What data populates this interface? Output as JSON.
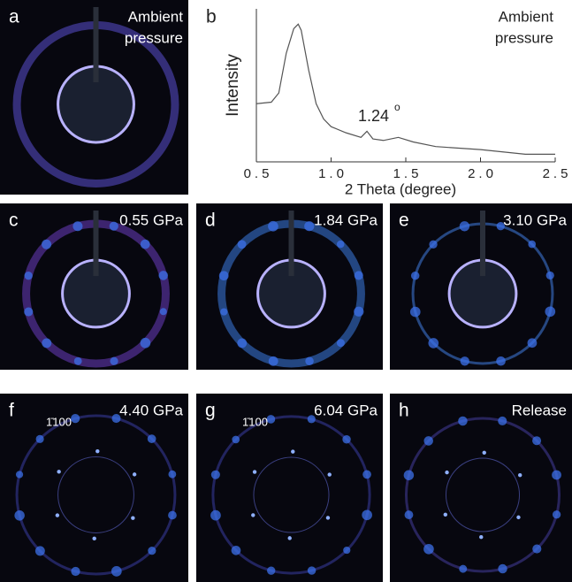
{
  "panels": [
    {
      "label": "a",
      "caption": [
        "Ambient",
        "pressure"
      ]
    },
    {
      "label": "c",
      "caption": [
        "0.55 GPa"
      ]
    },
    {
      "label": "d",
      "caption": [
        "1.84 GPa"
      ]
    },
    {
      "label": "e",
      "caption": [
        "3.10 GPa"
      ]
    },
    {
      "label": "f",
      "caption": [
        "4.40 GPa"
      ],
      "index": "1̄100"
    },
    {
      "label": "g",
      "caption": [
        "6.04 GPa"
      ],
      "index": "1̄100"
    },
    {
      "label": "h",
      "caption": [
        "Release"
      ]
    }
  ],
  "chart_data": {
    "type": "line",
    "label": "b",
    "caption": [
      "Ambient",
      "pressure"
    ],
    "xlabel": "2 Theta (degree)",
    "ylabel": "Intensity",
    "annotation": {
      "text": "1.24",
      "sup": "o"
    },
    "x": [
      0.5,
      0.6,
      0.65,
      0.7,
      0.75,
      0.78,
      0.8,
      0.85,
      0.9,
      0.95,
      1.0,
      1.1,
      1.2,
      1.24,
      1.28,
      1.35,
      1.45,
      1.55,
      1.7,
      2.0,
      2.3,
      2.5
    ],
    "series": [
      {
        "color": "#555555",
        "values": [
          38,
          39,
          45,
          71,
          87,
          90,
          86,
          60,
          38,
          28,
          23,
          19,
          16,
          20,
          15,
          14,
          16,
          13,
          10,
          8,
          5,
          5
        ]
      }
    ],
    "xlim": [
      0.5,
      2.5
    ],
    "xticks": [
      0.5,
      {
        "value": 1,
        "label": "1.0"
      },
      1.5,
      {
        "value": 2,
        "label": "2.0"
      },
      2.5
    ],
    "ylim": [
      0,
      100
    ]
  }
}
